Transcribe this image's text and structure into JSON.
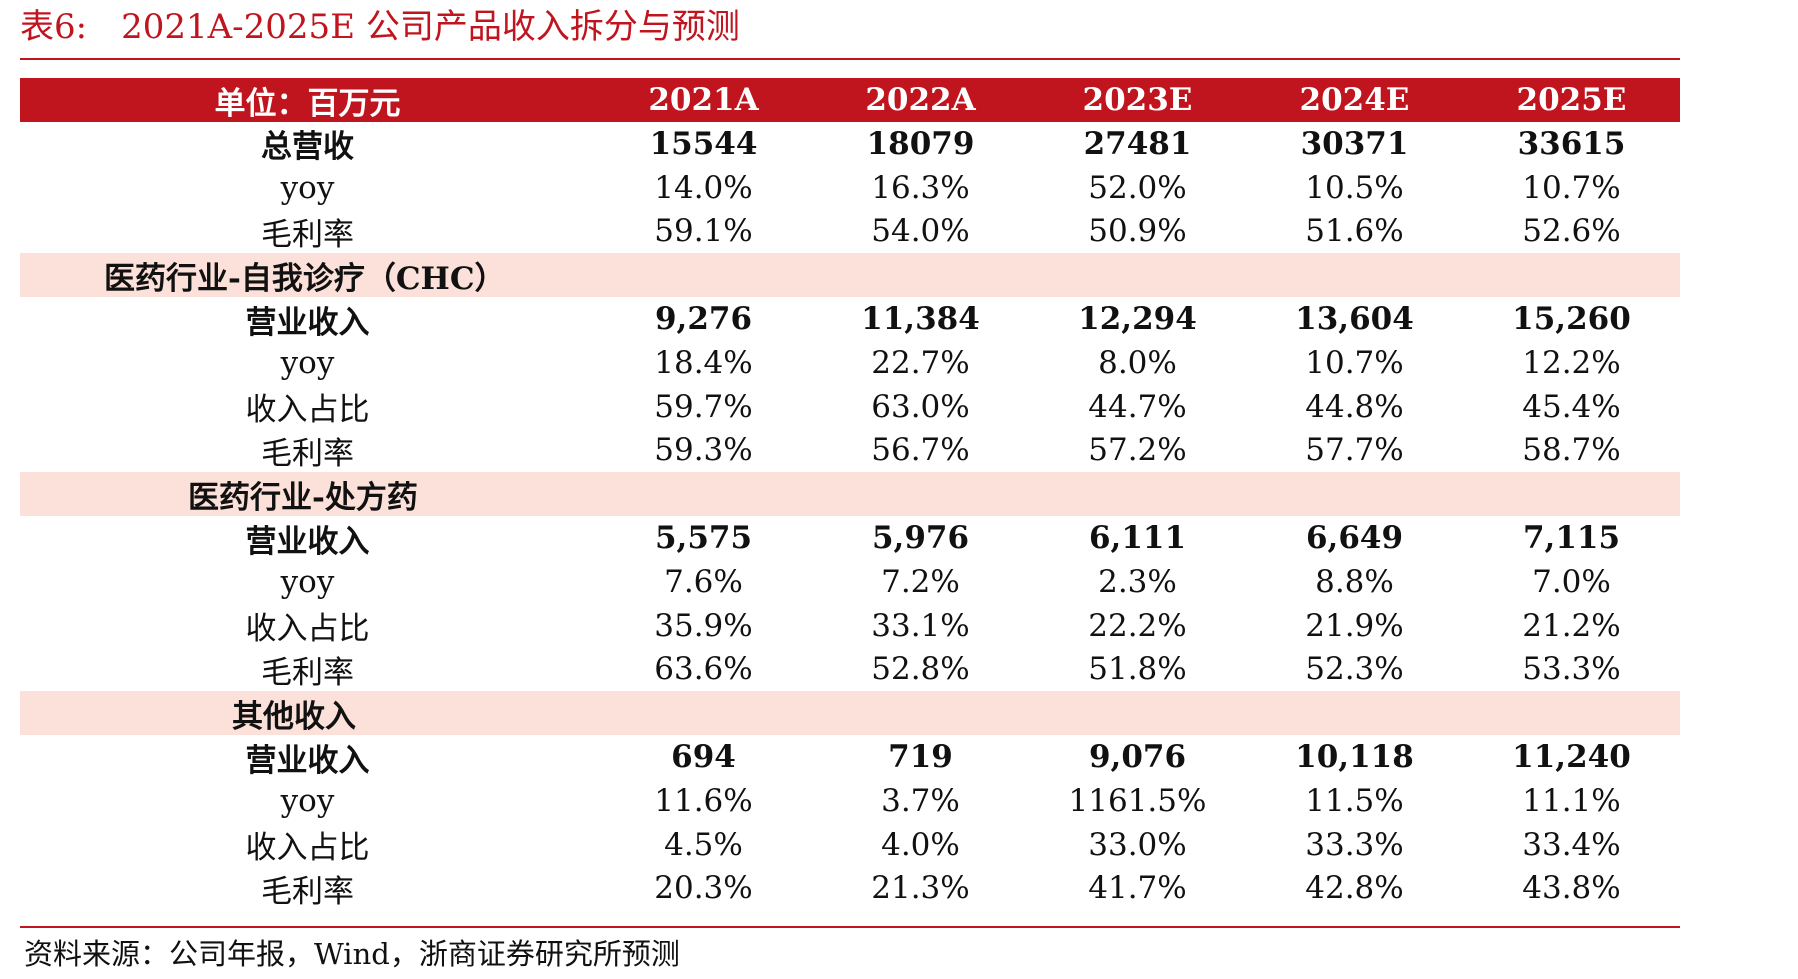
{
  "caption": {
    "number": "表6:",
    "title": "2021A-2025E 公司产品收入拆分与预测"
  },
  "header": {
    "unit": "单位：百万元",
    "years": [
      "2021A",
      "2022A",
      "2023E",
      "2024E",
      "2025E"
    ]
  },
  "total": {
    "revenue": {
      "label": "总营收",
      "values": [
        "15544",
        "18079",
        "27481",
        "30371",
        "33615"
      ]
    },
    "yoy": {
      "label": "yoy",
      "values": [
        "14.0%",
        "16.3%",
        "52.0%",
        "10.5%",
        "10.7%"
      ]
    },
    "margin": {
      "label": "毛利率",
      "values": [
        "59.1%",
        "54.0%",
        "50.9%",
        "51.6%",
        "52.6%"
      ]
    }
  },
  "segments": [
    {
      "title": "医药行业-自我诊疗（CHC）",
      "revenue": {
        "label": "营业收入",
        "values": [
          "9,276",
          "11,384",
          "12,294",
          "13,604",
          "15,260"
        ]
      },
      "yoy": {
        "label": "yoy",
        "values": [
          "18.4%",
          "22.7%",
          "8.0%",
          "10.7%",
          "12.2%"
        ]
      },
      "share": {
        "label": "收入占比",
        "values": [
          "59.7%",
          "63.0%",
          "44.7%",
          "44.8%",
          "45.4%"
        ]
      },
      "margin": {
        "label": "毛利率",
        "values": [
          "59.3%",
          "56.7%",
          "57.2%",
          "57.7%",
          "58.7%"
        ]
      }
    },
    {
      "title": "医药行业-处方药",
      "revenue": {
        "label": "营业收入",
        "values": [
          "5,575",
          "5,976",
          "6,111",
          "6,649",
          "7,115"
        ]
      },
      "yoy": {
        "label": "yoy",
        "values": [
          "7.6%",
          "7.2%",
          "2.3%",
          "8.8%",
          "7.0%"
        ]
      },
      "share": {
        "label": "收入占比",
        "values": [
          "35.9%",
          "33.1%",
          "22.2%",
          "21.9%",
          "21.2%"
        ]
      },
      "margin": {
        "label": "毛利率",
        "values": [
          "63.6%",
          "52.8%",
          "51.8%",
          "52.3%",
          "53.3%"
        ]
      }
    },
    {
      "title": "其他收入",
      "revenue": {
        "label": "营业收入",
        "values": [
          "694",
          "719",
          "9,076",
          "10,118",
          "11,240"
        ]
      },
      "yoy": {
        "label": "yoy",
        "values": [
          "11.6%",
          "3.7%",
          "1161.5%",
          "11.5%",
          "11.1%"
        ]
      },
      "share": {
        "label": "收入占比",
        "values": [
          "4.5%",
          "4.0%",
          "33.0%",
          "33.3%",
          "33.4%"
        ]
      },
      "margin": {
        "label": "毛利率",
        "values": [
          "20.3%",
          "21.3%",
          "41.7%",
          "42.8%",
          "43.8%"
        ]
      }
    }
  ],
  "source": "资料来源：公司年报，Wind，浙商证券研究所预测",
  "colors": {
    "accent_red": "#c0141e",
    "section_bg": "#fbe1d9"
  }
}
